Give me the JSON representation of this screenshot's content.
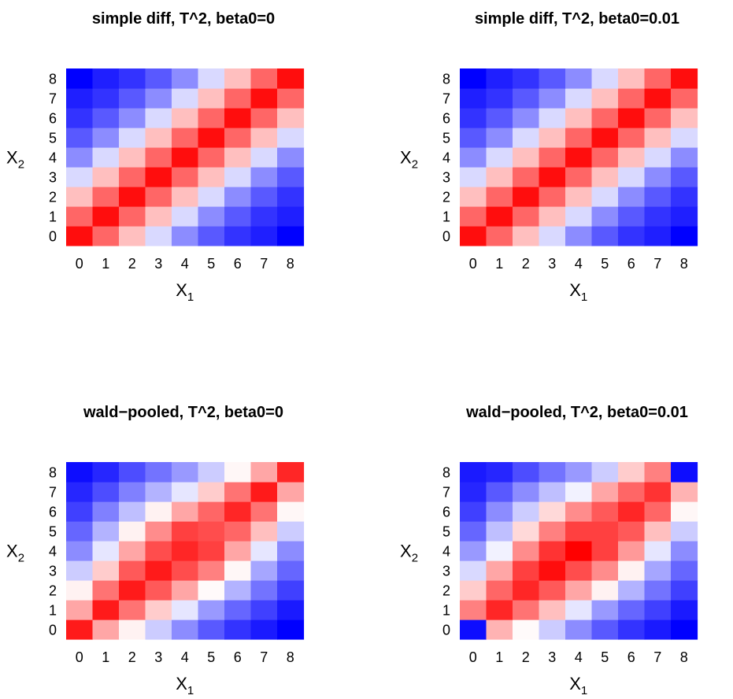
{
  "chart_data": [
    {
      "type": "heatmap",
      "title": "simple diff, T^2, beta0=0",
      "xlabel": "X",
      "xlabel_sub": "1",
      "ylabel": "X",
      "ylabel_sub": "2",
      "x": [
        0,
        1,
        2,
        3,
        4,
        5,
        6,
        7,
        8
      ],
      "y": [
        0,
        1,
        2,
        3,
        4,
        5,
        6,
        7,
        8
      ],
      "color_scale": {
        "low": "#0000ff",
        "mid": "#ffffff",
        "high": "#ff0000"
      },
      "z": [
        [
          0.95,
          0.6,
          0.25,
          -0.15,
          -0.45,
          -0.65,
          -0.8,
          -0.88,
          -1.0
        ],
        [
          0.6,
          0.95,
          0.6,
          0.25,
          -0.15,
          -0.45,
          -0.65,
          -0.8,
          -0.88
        ],
        [
          0.25,
          0.6,
          0.95,
          0.6,
          0.25,
          -0.15,
          -0.45,
          -0.65,
          -0.8
        ],
        [
          -0.15,
          0.25,
          0.6,
          0.95,
          0.6,
          0.25,
          -0.15,
          -0.45,
          -0.65
        ],
        [
          -0.45,
          -0.15,
          0.25,
          0.6,
          0.95,
          0.6,
          0.25,
          -0.15,
          -0.45
        ],
        [
          -0.65,
          -0.45,
          -0.15,
          0.25,
          0.6,
          0.95,
          0.6,
          0.25,
          -0.15
        ],
        [
          -0.8,
          -0.65,
          -0.45,
          -0.15,
          0.25,
          0.6,
          0.95,
          0.6,
          0.25
        ],
        [
          -0.88,
          -0.8,
          -0.65,
          -0.45,
          -0.15,
          0.25,
          0.6,
          0.95,
          0.6
        ],
        [
          -1.0,
          -0.88,
          -0.8,
          -0.65,
          -0.45,
          -0.15,
          0.25,
          0.6,
          0.95
        ]
      ]
    },
    {
      "type": "heatmap",
      "title": "simple diff, T^2, beta0=0.01",
      "xlabel": "X",
      "xlabel_sub": "1",
      "ylabel": "X",
      "ylabel_sub": "2",
      "x": [
        0,
        1,
        2,
        3,
        4,
        5,
        6,
        7,
        8
      ],
      "y": [
        0,
        1,
        2,
        3,
        4,
        5,
        6,
        7,
        8
      ],
      "color_scale": {
        "low": "#0000ff",
        "mid": "#ffffff",
        "high": "#ff0000"
      },
      "z": [
        [
          0.95,
          0.6,
          0.25,
          -0.15,
          -0.45,
          -0.65,
          -0.8,
          -0.88,
          -1.0
        ],
        [
          0.6,
          0.95,
          0.6,
          0.25,
          -0.15,
          -0.45,
          -0.65,
          -0.8,
          -0.88
        ],
        [
          0.25,
          0.6,
          0.95,
          0.6,
          0.25,
          -0.15,
          -0.45,
          -0.65,
          -0.8
        ],
        [
          -0.15,
          0.25,
          0.6,
          0.95,
          0.6,
          0.25,
          -0.15,
          -0.45,
          -0.65
        ],
        [
          -0.45,
          -0.15,
          0.25,
          0.6,
          0.95,
          0.6,
          0.25,
          -0.15,
          -0.45
        ],
        [
          -0.65,
          -0.45,
          -0.15,
          0.25,
          0.6,
          0.95,
          0.6,
          0.25,
          -0.15
        ],
        [
          -0.8,
          -0.65,
          -0.45,
          -0.15,
          0.25,
          0.6,
          0.95,
          0.6,
          0.25
        ],
        [
          -0.88,
          -0.8,
          -0.65,
          -0.45,
          -0.15,
          0.25,
          0.6,
          0.95,
          0.6
        ],
        [
          -1.0,
          -0.88,
          -0.8,
          -0.65,
          -0.45,
          -0.15,
          0.25,
          0.6,
          0.95
        ]
      ]
    },
    {
      "type": "heatmap",
      "title": "wald−pooled, T^2, beta0=0",
      "xlabel": "X",
      "xlabel_sub": "1",
      "ylabel": "X",
      "ylabel_sub": "2",
      "x": [
        0,
        1,
        2,
        3,
        4,
        5,
        6,
        7,
        8
      ],
      "y": [
        0,
        1,
        2,
        3,
        4,
        5,
        6,
        7,
        8
      ],
      "color_scale": {
        "low": "#0000ff",
        "mid": "#ffffff",
        "high": "#ff0000"
      },
      "z": [
        [
          0.9,
          0.35,
          0.05,
          -0.2,
          -0.45,
          -0.65,
          -0.8,
          -0.9,
          -1.0
        ],
        [
          0.35,
          0.9,
          0.55,
          0.2,
          -0.1,
          -0.4,
          -0.6,
          -0.75,
          -0.9
        ],
        [
          0.05,
          0.55,
          0.9,
          0.65,
          0.35,
          0.02,
          -0.3,
          -0.55,
          -0.75
        ],
        [
          -0.2,
          0.2,
          0.65,
          0.9,
          0.7,
          0.5,
          0.03,
          -0.35,
          -0.6
        ],
        [
          -0.45,
          -0.1,
          0.35,
          0.7,
          0.85,
          0.75,
          0.35,
          -0.1,
          -0.45
        ],
        [
          -0.6,
          -0.3,
          0.05,
          0.45,
          0.75,
          0.7,
          0.6,
          0.25,
          -0.2
        ],
        [
          -0.75,
          -0.5,
          -0.25,
          0.05,
          0.35,
          0.6,
          0.85,
          0.55,
          0.03
        ],
        [
          -0.85,
          -0.7,
          -0.5,
          -0.3,
          -0.1,
          0.2,
          0.55,
          0.9,
          0.35
        ],
        [
          -0.95,
          -0.85,
          -0.7,
          -0.55,
          -0.4,
          -0.2,
          0.03,
          0.35,
          0.85
        ]
      ]
    },
    {
      "type": "heatmap",
      "title": "wald−pooled, T^2, beta0=0.01",
      "xlabel": "X",
      "xlabel_sub": "1",
      "ylabel": "X",
      "ylabel_sub": "2",
      "x": [
        0,
        1,
        2,
        3,
        4,
        5,
        6,
        7,
        8
      ],
      "y": [
        0,
        1,
        2,
        3,
        4,
        5,
        6,
        7,
        8
      ],
      "color_scale": {
        "low": "#0000ff",
        "mid": "#ffffff",
        "high": "#ff0000"
      },
      "z": [
        [
          -0.95,
          0.3,
          0.02,
          -0.2,
          -0.45,
          -0.65,
          -0.8,
          -0.9,
          -1.0
        ],
        [
          0.5,
          0.85,
          0.55,
          0.25,
          -0.1,
          -0.4,
          -0.6,
          -0.75,
          -0.9
        ],
        [
          0.2,
          0.6,
          0.85,
          0.65,
          0.35,
          0.05,
          -0.3,
          -0.55,
          -0.75
        ],
        [
          -0.15,
          0.35,
          0.75,
          0.95,
          0.7,
          0.45,
          0.05,
          -0.35,
          -0.6
        ],
        [
          -0.4,
          -0.05,
          0.45,
          0.8,
          1.0,
          0.75,
          0.4,
          -0.1,
          -0.45
        ],
        [
          -0.6,
          -0.25,
          0.15,
          0.5,
          0.75,
          0.75,
          0.65,
          0.25,
          -0.2
        ],
        [
          -0.75,
          -0.45,
          -0.2,
          0.15,
          0.45,
          0.65,
          0.85,
          0.6,
          0.03
        ],
        [
          -0.85,
          -0.65,
          -0.45,
          -0.25,
          -0.05,
          0.35,
          0.6,
          0.8,
          0.3
        ],
        [
          -0.9,
          -0.85,
          -0.7,
          -0.55,
          -0.4,
          -0.2,
          0.2,
          0.5,
          -0.95
        ]
      ]
    }
  ]
}
